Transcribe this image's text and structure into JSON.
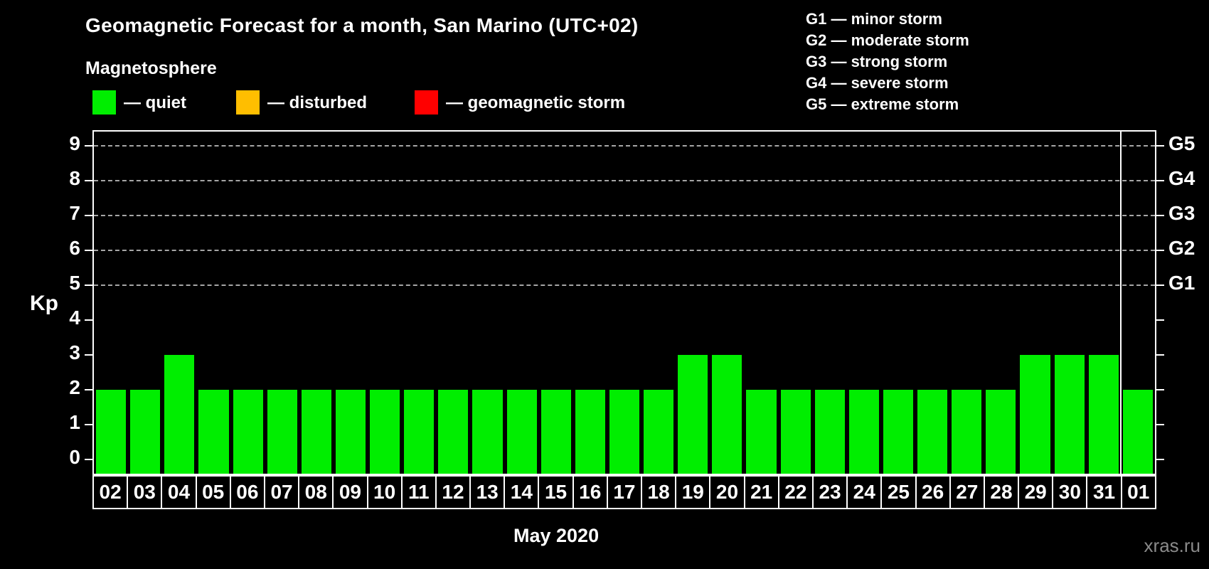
{
  "title": "Geomagnetic Forecast for a month, San Marino (UTC+02)",
  "subtitle": "Magnetosphere",
  "legend": {
    "items": [
      {
        "name": "quiet",
        "color": "#00EE00",
        "label": "— quiet"
      },
      {
        "name": "disturbed",
        "color": "#FFBE00",
        "label": "— disturbed"
      },
      {
        "name": "geomagnetic-storm",
        "color": "#FF0000",
        "label": "— geomagnetic storm"
      }
    ]
  },
  "g_legend": {
    "lines": [
      "G1 — minor storm",
      "G2 — moderate storm",
      "G3 — strong storm",
      "G4 — severe storm",
      "G5 — extreme storm"
    ]
  },
  "axis": {
    "y_title": "Kp",
    "x_title": "May 2020"
  },
  "watermark": "xras.ru",
  "chart_data": {
    "type": "bar",
    "title": "Geomagnetic Forecast for a month, San Marino (UTC+02)",
    "subtitle": "Magnetosphere",
    "xlabel": "May 2020",
    "ylabel": "Kp",
    "ylim": [
      -0.4,
      9.4
    ],
    "y_ticks": [
      "0",
      "1",
      "2",
      "3",
      "4",
      "5",
      "6",
      "7",
      "8",
      "9"
    ],
    "grid": "horizontal dashed at Kp 5-9",
    "grid_levels": [
      5,
      6,
      7,
      8,
      9
    ],
    "right_axis": [
      {
        "label": "G1",
        "kp": 5
      },
      {
        "label": "G2",
        "kp": 6
      },
      {
        "label": "G3",
        "kp": 7
      },
      {
        "label": "G4",
        "kp": 8
      },
      {
        "label": "G5",
        "kp": 9
      }
    ],
    "categories": [
      "02",
      "03",
      "04",
      "05",
      "06",
      "07",
      "08",
      "09",
      "10",
      "11",
      "12",
      "13",
      "14",
      "15",
      "16",
      "17",
      "18",
      "19",
      "20",
      "21",
      "22",
      "23",
      "24",
      "25",
      "26",
      "27",
      "28",
      "29",
      "30",
      "31",
      "01"
    ],
    "values": [
      2,
      2,
      3,
      2,
      2,
      2,
      2,
      2,
      2,
      2,
      2,
      2,
      2,
      2,
      2,
      2,
      2,
      3,
      3,
      2,
      2,
      2,
      2,
      2,
      2,
      2,
      2,
      3,
      3,
      3,
      2
    ],
    "bar_color": "#00EE00",
    "separator_after_category": "31",
    "legend_position": "top-left"
  }
}
